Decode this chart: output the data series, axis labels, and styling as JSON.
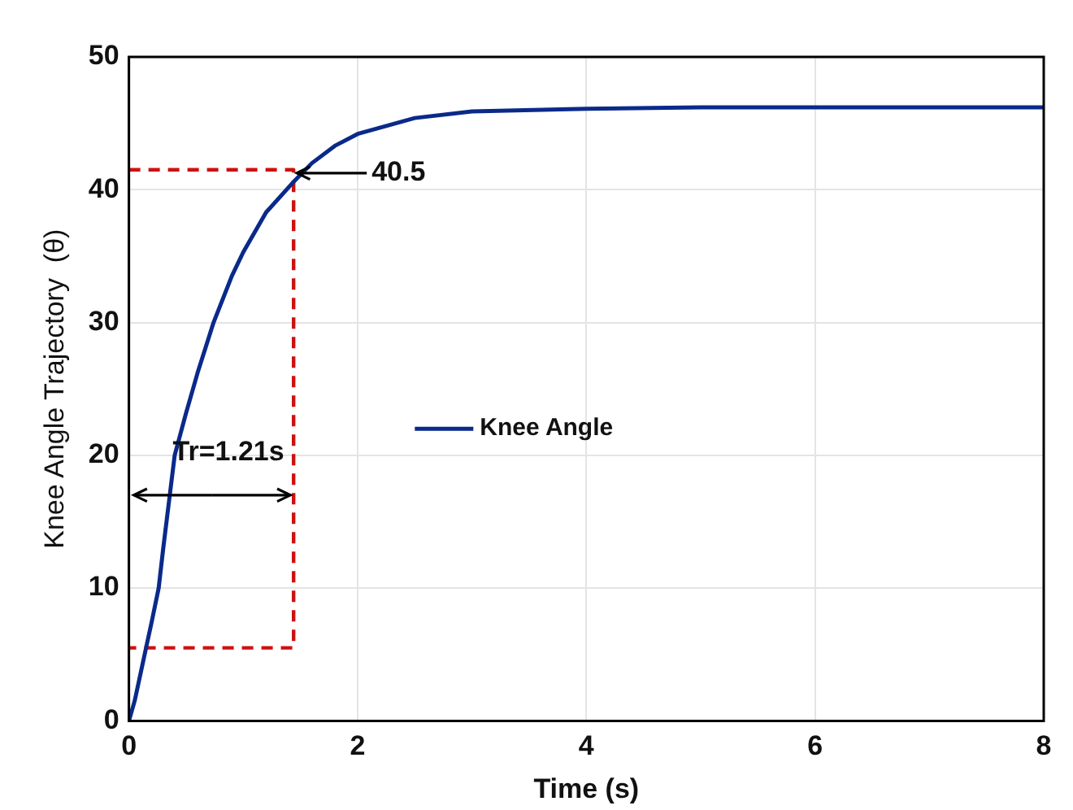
{
  "chart_data": {
    "type": "line",
    "xlabel": "Time (s)",
    "ylabel": "Knee Angle Trajectory  (θ)",
    "xlim": [
      0,
      8
    ],
    "xticks": [
      0,
      2,
      4,
      6,
      8
    ],
    "ylim": [
      0,
      50
    ],
    "yticks": [
      0,
      10,
      20,
      30,
      40,
      50
    ],
    "grid": true,
    "legend": "center",
    "marker": "none",
    "series": [
      {
        "name": "Knee Angle",
        "color": "#0a2a8a",
        "line_style": "solid",
        "x": [
          0,
          0.05,
          0.1,
          0.15,
          0.2,
          0.26,
          0.3,
          0.35,
          0.4,
          0.5,
          0.6,
          0.74,
          0.9,
          1.0,
          1.2,
          1.43,
          1.6,
          1.8,
          2.0,
          2.5,
          3.0,
          4.0,
          5.0,
          8.0
        ],
        "values": [
          0,
          1.5,
          3.5,
          5.5,
          7.5,
          10,
          13,
          16.5,
          20,
          23.2,
          26.2,
          30,
          33.5,
          35.3,
          38.3,
          40.5,
          42,
          43.3,
          44.2,
          45.4,
          45.9,
          46.1,
          46.2,
          46.2
        ]
      },
      {
        "type": "line",
        "color": "#cc1111",
        "line_style": "dashed",
        "x": [
          0,
          1.44,
          1.44,
          0
        ],
        "values": [
          41.5,
          41.5,
          5.5,
          5.5
        ]
      }
    ],
    "annotations": [
      {
        "text": "40.5",
        "x": 1.44,
        "y": 41.5
      },
      "Tr=1.21s"
    ]
  }
}
